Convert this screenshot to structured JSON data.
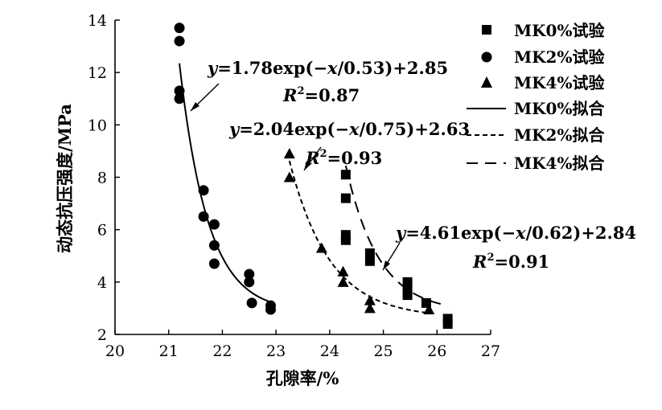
{
  "chart_data": {
    "type": "scatter",
    "xlabel": "孔隙率/%",
    "ylabel": "动态抗压强度/MPa",
    "xlim": [
      20,
      27
    ],
    "ylim": [
      2,
      14
    ],
    "xticks": [
      "20",
      "21",
      "22",
      "23",
      "24",
      "25",
      "26",
      "27"
    ],
    "yticks": [
      "2",
      "4",
      "6",
      "8",
      "10",
      "12",
      "14"
    ],
    "grid": false,
    "legend_position": "top-right",
    "series": [
      {
        "name": "MK0%试验",
        "marker": "square",
        "points": [
          [
            24.3,
            8.1
          ],
          [
            24.3,
            7.2
          ],
          [
            24.3,
            5.8
          ],
          [
            24.3,
            5.6
          ],
          [
            24.75,
            5.1
          ],
          [
            24.75,
            4.8
          ],
          [
            25.45,
            4.0
          ],
          [
            25.45,
            3.7
          ],
          [
            25.45,
            3.5
          ],
          [
            25.8,
            3.2
          ],
          [
            26.2,
            2.6
          ],
          [
            26.2,
            2.4
          ]
        ]
      },
      {
        "name": "MK2%试验",
        "marker": "circle",
        "points": [
          [
            21.2,
            13.7
          ],
          [
            21.2,
            13.2
          ],
          [
            21.2,
            11.3
          ],
          [
            21.2,
            11.0
          ],
          [
            21.65,
            7.5
          ],
          [
            21.65,
            6.5
          ],
          [
            21.85,
            6.2
          ],
          [
            21.85,
            5.4
          ],
          [
            21.85,
            4.7
          ],
          [
            22.5,
            4.3
          ],
          [
            22.5,
            4.0
          ],
          [
            22.55,
            3.2
          ],
          [
            22.9,
            3.1
          ],
          [
            22.9,
            2.95
          ]
        ]
      },
      {
        "name": "MK4%试验",
        "marker": "triangle",
        "points": [
          [
            23.25,
            8.9
          ],
          [
            23.25,
            8.0
          ],
          [
            23.85,
            5.3
          ],
          [
            24.25,
            4.4
          ],
          [
            24.25,
            4.0
          ],
          [
            24.75,
            3.3
          ],
          [
            24.75,
            3.0
          ],
          [
            25.85,
            2.95
          ]
        ]
      }
    ],
    "fits": [
      {
        "name": "MK0%拟合",
        "dash": "solid",
        "x_range": [
          21.2,
          22.9
        ],
        "x0": 21.2,
        "A": 9.5,
        "t": 0.53,
        "y0": 2.85
      },
      {
        "name": "MK2%拟合",
        "dash": "short",
        "x_range": [
          23.25,
          25.85
        ],
        "x0": 23.25,
        "A": 6.0,
        "t": 0.75,
        "y0": 2.63
      },
      {
        "name": "MK4%拟合",
        "dash": "long",
        "x_range": [
          24.3,
          26.2
        ],
        "x0": 24.3,
        "A": 5.6,
        "t": 0.62,
        "y0": 2.84
      }
    ],
    "annotations": [
      {
        "id": "a1",
        "eq_prefix": "y",
        "eq_main": "=1.78exp(−",
        "eq_var": "x",
        "eq_tail": "/0.53)+2.85",
        "r2_value": "=0.87"
      },
      {
        "id": "a2",
        "eq_prefix": "y",
        "eq_main": "=2.04exp(−",
        "eq_var": "x",
        "eq_tail": "/0.75)+2.63",
        "r2_value": "=0.93"
      },
      {
        "id": "a3",
        "eq_prefix": "y",
        "eq_main": "=4.61exp(−",
        "eq_var": "x",
        "eq_tail": "/0.62)+2.84",
        "r2_value": "=0.91"
      }
    ],
    "r2_label": "R",
    "r2_sup": "2"
  }
}
